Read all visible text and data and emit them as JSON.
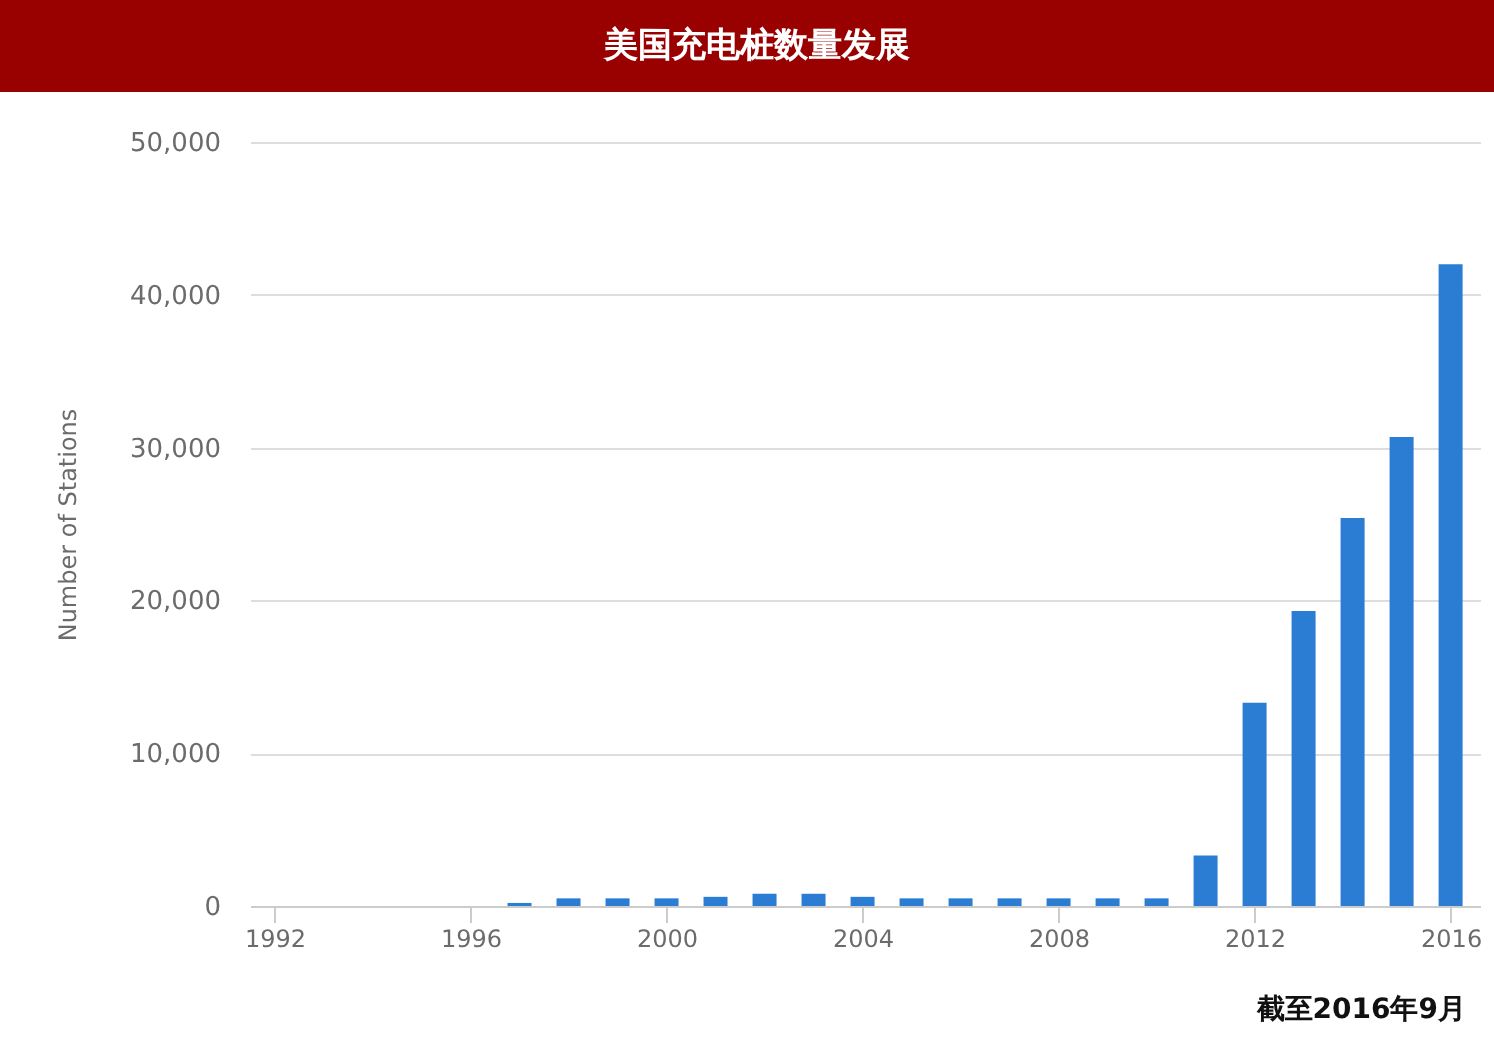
{
  "chart_data": {
    "type": "bar",
    "title": "美国充电桩数量发展",
    "ylabel": "Number of Stations",
    "x": [
      1997,
      1998,
      1999,
      2000,
      2001,
      2002,
      2003,
      2004,
      2005,
      2006,
      2007,
      2008,
      2009,
      2010,
      2011,
      2012,
      2013,
      2014,
      2015,
      2016
    ],
    "values": [
      200,
      500,
      500,
      500,
      600,
      800,
      800,
      600,
      500,
      500,
      500,
      500,
      500,
      500,
      3300,
      13300,
      19300,
      25400,
      30700,
      42000
    ],
    "color": "#2b7cd3",
    "xlim": [
      1991.5,
      2016.6
    ],
    "xticks": [
      1992,
      1996,
      2000,
      2004,
      2008,
      2012,
      2016
    ],
    "ylim": [
      0,
      50000
    ],
    "yticks": [
      0,
      {
        "value": 10000,
        "label": "10,000"
      },
      {
        "value": 20000,
        "label": "20,000"
      },
      {
        "value": 30000,
        "label": "30,000"
      },
      {
        "value": 40000,
        "label": "40,000"
      },
      {
        "value": 50000,
        "label": "50,000"
      }
    ],
    "grid": "y",
    "annotations": [
      "截至2016年9月"
    ]
  }
}
